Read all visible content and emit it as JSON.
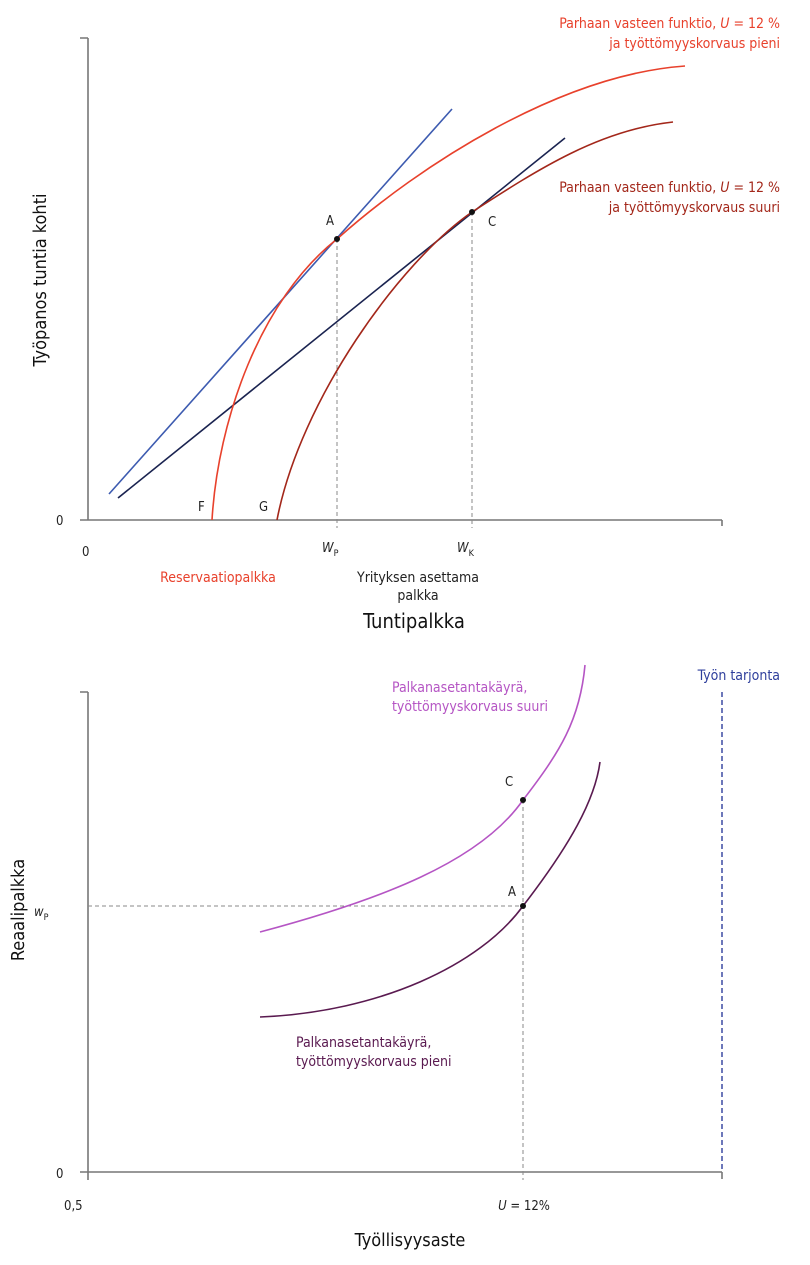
{
  "colors": {
    "red": "#e8412c",
    "dark_red": "#a3271a",
    "blue": "#3d5bb0",
    "navy": "#1a2350",
    "purple": "#b555c4",
    "dark_purple": "#5a1a50",
    "supply": "#2f3f9c"
  },
  "top": {
    "y_label": "Työpanos tuntia kohti",
    "x_label": "Tuntipalkka",
    "y_origin": "0",
    "x_origin": "0",
    "point_a": "A",
    "point_c": "C",
    "point_f": "F",
    "point_g": "G",
    "wp_main": "W",
    "wp_sub": "P",
    "wk_main": "W",
    "wk_sub": "K",
    "reservation_wage": "Reservaatiopalkka",
    "firm_wage_1": "Yrityksen asettama",
    "firm_wage_2": "palkka",
    "brf_low": {
      "line1_pre": "Parhaan vasteen funktio, ",
      "line1_u": "U",
      "line1_post": " = 12 %",
      "line2": "ja työttömyyskorvaus pieni"
    },
    "brf_high": {
      "line1_pre": "Parhaan vasteen funktio, ",
      "line1_u": "U",
      "line1_post": " = 12 %",
      "line2": "ja työttömyyskorvaus suuri"
    }
  },
  "bottom": {
    "y_label": "Reaalipalkka",
    "x_label": "Työllisyysaste",
    "y_origin": "0",
    "x_origin": "0,5",
    "wp_main": "w",
    "wp_sub": "P",
    "u_main": "U",
    "u_post": " = 12%",
    "point_a": "A",
    "point_c": "C",
    "labor_supply": "Työn tarjonta",
    "wsc_high": {
      "line1": "Palkanasetantakäyrä,",
      "line2": "työttömyyskorvaus suuri"
    },
    "wsc_low": {
      "line1": "Palkanasetantakäyrä,",
      "line2": "työttömyyskorvaus pieni"
    }
  }
}
